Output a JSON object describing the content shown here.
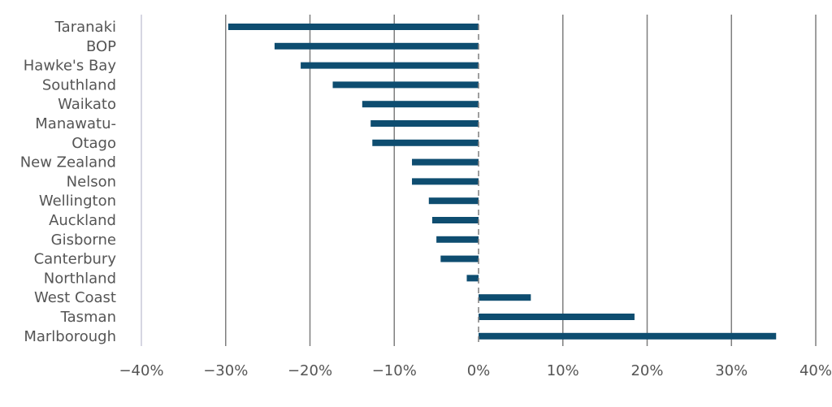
{
  "chart_data": {
    "type": "bar",
    "orientation": "horizontal",
    "categories": [
      "Taranaki",
      "BOP",
      "Hawke's Bay",
      "Southland",
      "Waikato",
      "Manawatu-",
      "Otago",
      "New Zealand",
      "Nelson",
      "Wellington",
      "Auckland",
      "Gisborne",
      "Canterbury",
      "Northland",
      "West Coast",
      "Tasman",
      "Marlborough"
    ],
    "values": [
      -29.7,
      -24.2,
      -21.1,
      -17.3,
      -13.8,
      -12.8,
      -12.6,
      -7.9,
      -7.9,
      -5.9,
      -5.5,
      -5.0,
      -4.5,
      -1.4,
      6.2,
      18.5,
      35.3
    ],
    "xlim": [
      -40,
      40
    ],
    "xticks": [
      -40,
      -30,
      -20,
      -10,
      0,
      10,
      20,
      30,
      40
    ],
    "xtick_labels": [
      "−40%",
      "−30%",
      "−20%",
      "−10%",
      "0%",
      "10%",
      "20%",
      "30%",
      "40%"
    ],
    "grid": "vertical",
    "bar_color": "#0e4d70",
    "title": "",
    "xlabel": "",
    "ylabel": ""
  }
}
